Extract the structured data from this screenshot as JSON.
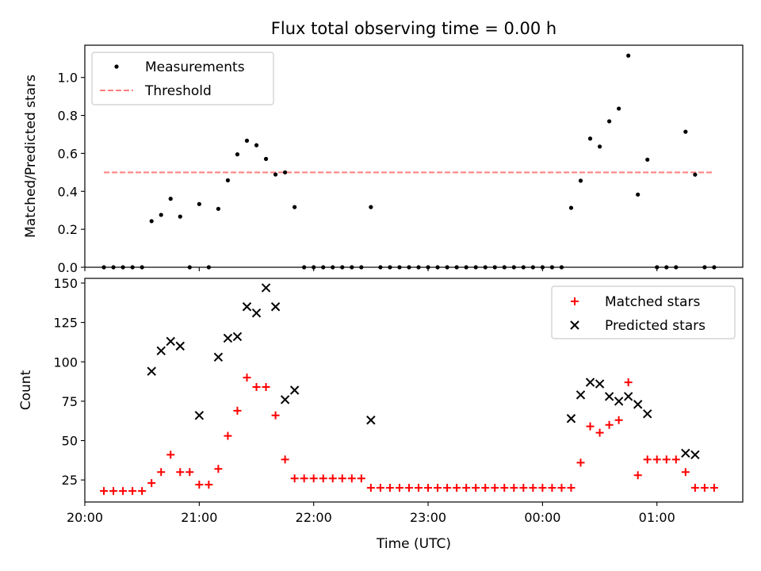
{
  "chart_data": [
    {
      "type": "scatter",
      "title": "Flux total observing time = 0.00 h",
      "ylabel": "Matched/Predicted stars",
      "xlabel": "",
      "xlim": [
        "20:00",
        "01:45"
      ],
      "ylim": [
        0,
        1.17
      ],
      "yticks": [
        "0.0",
        "0.2",
        "0.4",
        "0.6",
        "0.8",
        "1.0"
      ],
      "legend": {
        "position": "top-left",
        "entries": [
          "Measurements",
          "Threshold"
        ]
      },
      "colors": {
        "measurements": "#000000",
        "threshold": "#ff7f7f"
      },
      "series": [
        {
          "name": "Measurements",
          "marker": "dot",
          "points": [
            [
              "20:10",
              0
            ],
            [
              "20:15",
              0
            ],
            [
              "20:20",
              0
            ],
            [
              "20:25",
              0
            ],
            [
              "20:30",
              0
            ],
            [
              "20:35",
              0.243
            ],
            [
              "20:40",
              0.276
            ],
            [
              "20:45",
              0.361
            ],
            [
              "20:50",
              0.267
            ],
            [
              "20:55",
              0
            ],
            [
              "21:00",
              0.333
            ],
            [
              "21:05",
              0
            ],
            [
              "21:10",
              0.308
            ],
            [
              "21:15",
              0.458
            ],
            [
              "21:20",
              0.595
            ],
            [
              "21:25",
              0.667
            ],
            [
              "21:30",
              0.643
            ],
            [
              "21:35",
              0.571
            ],
            [
              "21:40",
              0.489
            ],
            [
              "21:45",
              0.5
            ],
            [
              "21:50",
              0.317
            ],
            [
              "21:55",
              0
            ],
            [
              "22:00",
              0
            ],
            [
              "22:05",
              0
            ],
            [
              "22:10",
              0
            ],
            [
              "22:15",
              0
            ],
            [
              "22:20",
              0
            ],
            [
              "22:25",
              0
            ],
            [
              "22:30",
              0.317
            ],
            [
              "22:35",
              0
            ],
            [
              "22:40",
              0
            ],
            [
              "22:45",
              0
            ],
            [
              "22:50",
              0
            ],
            [
              "22:55",
              0
            ],
            [
              "23:00",
              0
            ],
            [
              "23:05",
              0
            ],
            [
              "23:10",
              0
            ],
            [
              "23:15",
              0
            ],
            [
              "23:20",
              0
            ],
            [
              "23:25",
              0
            ],
            [
              "23:30",
              0
            ],
            [
              "23:35",
              0
            ],
            [
              "23:40",
              0
            ],
            [
              "23:45",
              0
            ],
            [
              "23:50",
              0
            ],
            [
              "23:55",
              0
            ],
            [
              "00:00",
              0
            ],
            [
              "00:05",
              0
            ],
            [
              "00:10",
              0
            ],
            [
              "00:15",
              0.313
            ],
            [
              "00:20",
              0.456
            ],
            [
              "00:25",
              0.678
            ],
            [
              "00:30",
              0.636
            ],
            [
              "00:35",
              0.769
            ],
            [
              "00:40",
              0.836
            ],
            [
              "00:45",
              1.115
            ],
            [
              "00:50",
              0.383
            ],
            [
              "00:55",
              0.567
            ],
            [
              "01:00",
              0
            ],
            [
              "01:05",
              0
            ],
            [
              "01:10",
              0
            ],
            [
              "01:15",
              0.714
            ],
            [
              "01:20",
              0.488
            ],
            [
              "01:25",
              0
            ],
            [
              "01:30",
              0
            ]
          ]
        },
        {
          "name": "Threshold",
          "style": "dashed-line",
          "x": [
            "20:10",
            "01:30"
          ],
          "y": [
            0.5,
            0.5
          ]
        }
      ]
    },
    {
      "type": "scatter",
      "title": "",
      "ylabel": "Count",
      "xlabel": "Time (UTC)",
      "xlim": [
        "20:00",
        "01:45"
      ],
      "ylim": [
        11,
        153
      ],
      "xticks": [
        "20:00",
        "21:00",
        "22:00",
        "23:00",
        "00:00",
        "01:00"
      ],
      "yticks": [
        "25",
        "50",
        "75",
        "100",
        "125",
        "150"
      ],
      "legend": {
        "position": "top-right",
        "entries": [
          "Matched stars",
          "Predicted stars"
        ]
      },
      "colors": {
        "matched": "#ff0000",
        "predicted": "#000000"
      },
      "series": [
        {
          "name": "Matched stars",
          "marker": "plus",
          "points": [
            [
              "20:10",
              18
            ],
            [
              "20:15",
              18
            ],
            [
              "20:20",
              18
            ],
            [
              "20:25",
              18
            ],
            [
              "20:30",
              18
            ],
            [
              "20:35",
              23
            ],
            [
              "20:40",
              30
            ],
            [
              "20:45",
              41
            ],
            [
              "20:50",
              30
            ],
            [
              "20:55",
              30
            ],
            [
              "21:00",
              22
            ],
            [
              "21:05",
              22
            ],
            [
              "21:10",
              32
            ],
            [
              "21:15",
              53
            ],
            [
              "21:20",
              69
            ],
            [
              "21:25",
              90
            ],
            [
              "21:30",
              84
            ],
            [
              "21:35",
              84
            ],
            [
              "21:40",
              66
            ],
            [
              "21:45",
              38
            ],
            [
              "21:50",
              26
            ],
            [
              "21:55",
              26
            ],
            [
              "22:00",
              26
            ],
            [
              "22:05",
              26
            ],
            [
              "22:10",
              26
            ],
            [
              "22:15",
              26
            ],
            [
              "22:20",
              26
            ],
            [
              "22:25",
              26
            ],
            [
              "22:30",
              20
            ],
            [
              "22:35",
              20
            ],
            [
              "22:40",
              20
            ],
            [
              "22:45",
              20
            ],
            [
              "22:50",
              20
            ],
            [
              "22:55",
              20
            ],
            [
              "23:00",
              20
            ],
            [
              "23:05",
              20
            ],
            [
              "23:10",
              20
            ],
            [
              "23:15",
              20
            ],
            [
              "23:20",
              20
            ],
            [
              "23:25",
              20
            ],
            [
              "23:30",
              20
            ],
            [
              "23:35",
              20
            ],
            [
              "23:40",
              20
            ],
            [
              "23:45",
              20
            ],
            [
              "23:50",
              20
            ],
            [
              "23:55",
              20
            ],
            [
              "00:00",
              20
            ],
            [
              "00:05",
              20
            ],
            [
              "00:10",
              20
            ],
            [
              "00:15",
              20
            ],
            [
              "00:20",
              36
            ],
            [
              "00:25",
              59
            ],
            [
              "00:30",
              55
            ],
            [
              "00:35",
              60
            ],
            [
              "00:40",
              63
            ],
            [
              "00:45",
              87
            ],
            [
              "00:50",
              28
            ],
            [
              "00:55",
              38
            ],
            [
              "01:00",
              38
            ],
            [
              "01:05",
              38
            ],
            [
              "01:10",
              38
            ],
            [
              "01:15",
              30
            ],
            [
              "01:20",
              20
            ],
            [
              "01:25",
              20
            ],
            [
              "01:30",
              20
            ]
          ]
        },
        {
          "name": "Predicted stars",
          "marker": "x",
          "points": [
            [
              "20:35",
              94
            ],
            [
              "20:40",
              107
            ],
            [
              "20:45",
              113
            ],
            [
              "20:50",
              110
            ],
            [
              "21:00",
              66
            ],
            [
              "21:10",
              103
            ],
            [
              "21:15",
              115
            ],
            [
              "21:20",
              116
            ],
            [
              "21:25",
              135
            ],
            [
              "21:30",
              131
            ],
            [
              "21:35",
              147
            ],
            [
              "21:40",
              135
            ],
            [
              "21:45",
              76
            ],
            [
              "21:50",
              82
            ],
            [
              "22:30",
              63
            ],
            [
              "00:15",
              64
            ],
            [
              "00:20",
              79
            ],
            [
              "00:25",
              87
            ],
            [
              "00:30",
              86
            ],
            [
              "00:35",
              78
            ],
            [
              "00:40",
              75
            ],
            [
              "00:45",
              78
            ],
            [
              "00:50",
              73
            ],
            [
              "00:55",
              67
            ],
            [
              "01:15",
              42
            ],
            [
              "01:20",
              41
            ]
          ]
        }
      ]
    }
  ]
}
